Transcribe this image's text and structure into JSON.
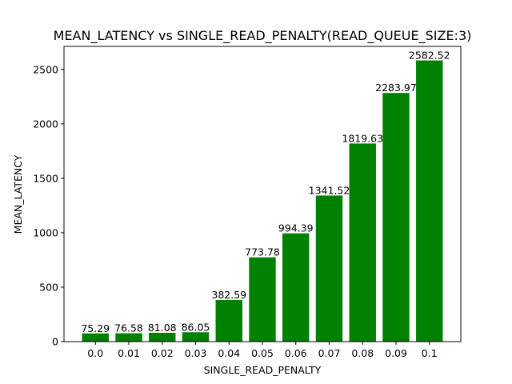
{
  "chart_data": {
    "type": "bar",
    "title": "MEAN_LATENCY vs SINGLE_READ_PENALTY(READ_QUEUE_SIZE:3)",
    "xlabel": "SINGLE_READ_PENALTY",
    "ylabel": "MEAN_LATENCY",
    "categories": [
      "0.0",
      "0.01",
      "0.02",
      "0.03",
      "0.04",
      "0.05",
      "0.06",
      "0.07",
      "0.08",
      "0.09",
      "0.1"
    ],
    "values": [
      75.29,
      76.58,
      81.08,
      86.05,
      382.59,
      773.78,
      994.39,
      1341.52,
      1819.63,
      2283.97,
      2582.52
    ],
    "value_labels": [
      "75.29",
      "76.58",
      "81.08",
      "86.05",
      "382.59",
      "773.78",
      "994.39",
      "1341.52",
      "1819.63",
      "2283.97",
      "2582.52"
    ],
    "ylim": [
      0,
      2711.646
    ],
    "yticks": [
      0,
      500,
      1000,
      1500,
      2000,
      2500
    ],
    "grid": false,
    "bar_color": "#008000"
  }
}
